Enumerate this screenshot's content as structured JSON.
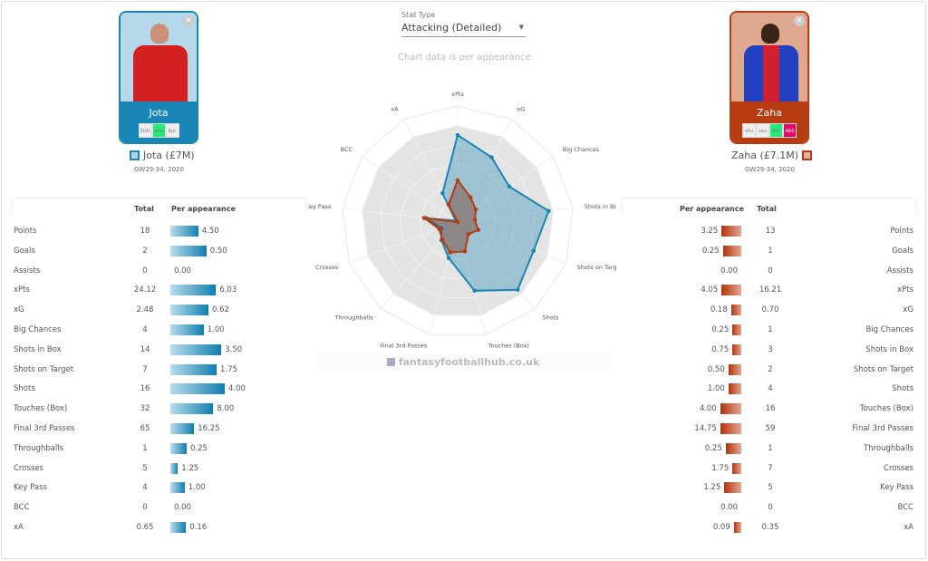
{
  "stat_type": {
    "label": "Stat Type",
    "value": "Attacking (Detailed)"
  },
  "note": "Chart data is per appearance.",
  "watermark": "fantasyfootballhub.co.uk",
  "colors": {
    "player1": "#1a86b5",
    "player2": "#b73c12"
  },
  "player1": {
    "name": "Jota",
    "legend": "Jota (£7M)",
    "period": "GW29-34, 2020",
    "fixtures": [
      {
        "t": "SOU",
        "c": "#eeeeee"
      },
      {
        "t": "wba",
        "c": "#22ee77"
      },
      {
        "t": "bur",
        "c": "#eeeeee"
      }
    ]
  },
  "player2": {
    "name": "Zaha",
    "legend": "Zaha (£7.1M)",
    "period": "GW29-34, 2020",
    "fixtures": [
      {
        "t": "shu",
        "c": "#eeeeee"
      },
      {
        "t": "sou",
        "c": "#eeeeee"
      },
      {
        "t": "AVL",
        "c": "#22ee77"
      },
      {
        "t": "ARS",
        "c": "#ee0066"
      }
    ]
  },
  "table": {
    "total_header": "Total",
    "per_app_header": "Per appearance",
    "rows": [
      {
        "label": "Points",
        "p1_total": "18",
        "p1_per": "4.50",
        "p1_fill": 0.41,
        "p2_total": "13",
        "p2_per": "3.25",
        "p2_fill": 0.29
      },
      {
        "label": "Goals",
        "p1_total": "2",
        "p1_per": "0.50",
        "p1_fill": 0.53,
        "p2_total": "1",
        "p2_per": "0.25",
        "p2_fill": 0.27
      },
      {
        "label": "Assists",
        "p1_total": "0",
        "p1_per": "0.00",
        "p1_fill": 0,
        "p2_total": "0",
        "p2_per": "0.00",
        "p2_fill": 0
      },
      {
        "label": "xPts",
        "p1_total": "24.12",
        "p1_per": "6.03",
        "p1_fill": 0.67,
        "p2_total": "16.21",
        "p2_per": "4.05",
        "p2_fill": 0.29
      },
      {
        "label": "xG",
        "p1_total": "2.48",
        "p1_per": "0.62",
        "p1_fill": 0.56,
        "p2_total": "0.70",
        "p2_per": "0.18",
        "p2_fill": 0.15
      },
      {
        "label": "Big Chances",
        "p1_total": "4",
        "p1_per": "1.00",
        "p1_fill": 0.49,
        "p2_total": "1",
        "p2_per": "0.25",
        "p2_fill": 0.13
      },
      {
        "label": "Shots in Box",
        "p1_total": "14",
        "p1_per": "3.50",
        "p1_fill": 0.75,
        "p2_total": "3",
        "p2_per": "0.75",
        "p2_fill": 0.13
      },
      {
        "label": "Shots on Target",
        "p1_total": "7",
        "p1_per": "1.75",
        "p1_fill": 0.68,
        "p2_total": "2",
        "p2_per": "0.50",
        "p2_fill": 0.19
      },
      {
        "label": "Shots",
        "p1_total": "16",
        "p1_per": "4.00",
        "p1_fill": 0.8,
        "p2_total": "4",
        "p2_per": "1.00",
        "p2_fill": 0.19
      },
      {
        "label": "Touches (Box)",
        "p1_total": "32",
        "p1_per": "8.00",
        "p1_fill": 0.63,
        "p2_total": "16",
        "p2_per": "4.00",
        "p2_fill": 0.31
      },
      {
        "label": "Final 3rd Passes",
        "p1_total": "65",
        "p1_per": "16.25",
        "p1_fill": 0.35,
        "p2_total": "59",
        "p2_per": "14.75",
        "p2_fill": 0.31
      },
      {
        "label": "Throughballs",
        "p1_total": "1",
        "p1_per": "0.25",
        "p1_fill": 0.24,
        "p2_total": "1",
        "p2_per": "0.25",
        "p2_fill": 0.23
      },
      {
        "label": "Crosses",
        "p1_total": "5",
        "p1_per": "1.25",
        "p1_fill": 0.11,
        "p2_total": "7",
        "p2_per": "1.75",
        "p2_fill": 0.13
      },
      {
        "label": "Key Pass",
        "p1_total": "4",
        "p1_per": "1.00",
        "p1_fill": 0.21,
        "p2_total": "5",
        "p2_per": "1.25",
        "p2_fill": 0.25
      },
      {
        "label": "BCC",
        "p1_total": "0",
        "p1_per": "0.00",
        "p1_fill": 0,
        "p2_total": "0",
        "p2_per": "0.00",
        "p2_fill": 0
      },
      {
        "label": "xA",
        "p1_total": "0.65",
        "p1_per": "0.16",
        "p1_fill": 0.23,
        "p2_total": "0.35",
        "p2_per": "0.09",
        "p2_fill": 0.11
      }
    ]
  },
  "chart_data": {
    "type": "radar",
    "axes": [
      "xPts",
      "xG",
      "Big Chances",
      "Shots in Box",
      "Shots on Target",
      "Shots",
      "Touches (Box)",
      "Final 3rd Passes",
      "Throughballs",
      "Crosses",
      "Key Pass",
      "BCC",
      "xA"
    ],
    "range": [
      0,
      1
    ],
    "series": [
      {
        "name": "Jota",
        "values": [
          0.75,
          0.63,
          0.54,
          0.79,
          0.7,
          0.78,
          0.61,
          0.32,
          0.21,
          0.15,
          0.27,
          0.02,
          0.28
        ]
      },
      {
        "name": "Zaha",
        "values": [
          0.36,
          0.24,
          0.19,
          0.15,
          0.19,
          0.14,
          0.26,
          0.27,
          0.2,
          0.17,
          0.29,
          0.0,
          0.17
        ]
      }
    ]
  }
}
